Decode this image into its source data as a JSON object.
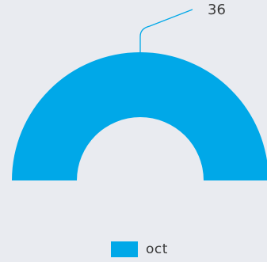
{
  "chart_data": {
    "type": "pie",
    "variant": "semi-donut",
    "categories": [
      "oct"
    ],
    "values": [
      36
    ],
    "data_labels": [
      "36"
    ],
    "series": [
      {
        "name": "oct",
        "values": [
          36
        ],
        "color": "#00a8e8"
      }
    ],
    "legend": {
      "position": "bottom-center",
      "entries": [
        "oct"
      ]
    },
    "title": "",
    "xlabel": "",
    "ylabel": ""
  },
  "colors": {
    "background": "#e9ebf0",
    "slice": "#00a8e8",
    "leader_line": "#00a8e8",
    "text": "#3a3a3a"
  }
}
